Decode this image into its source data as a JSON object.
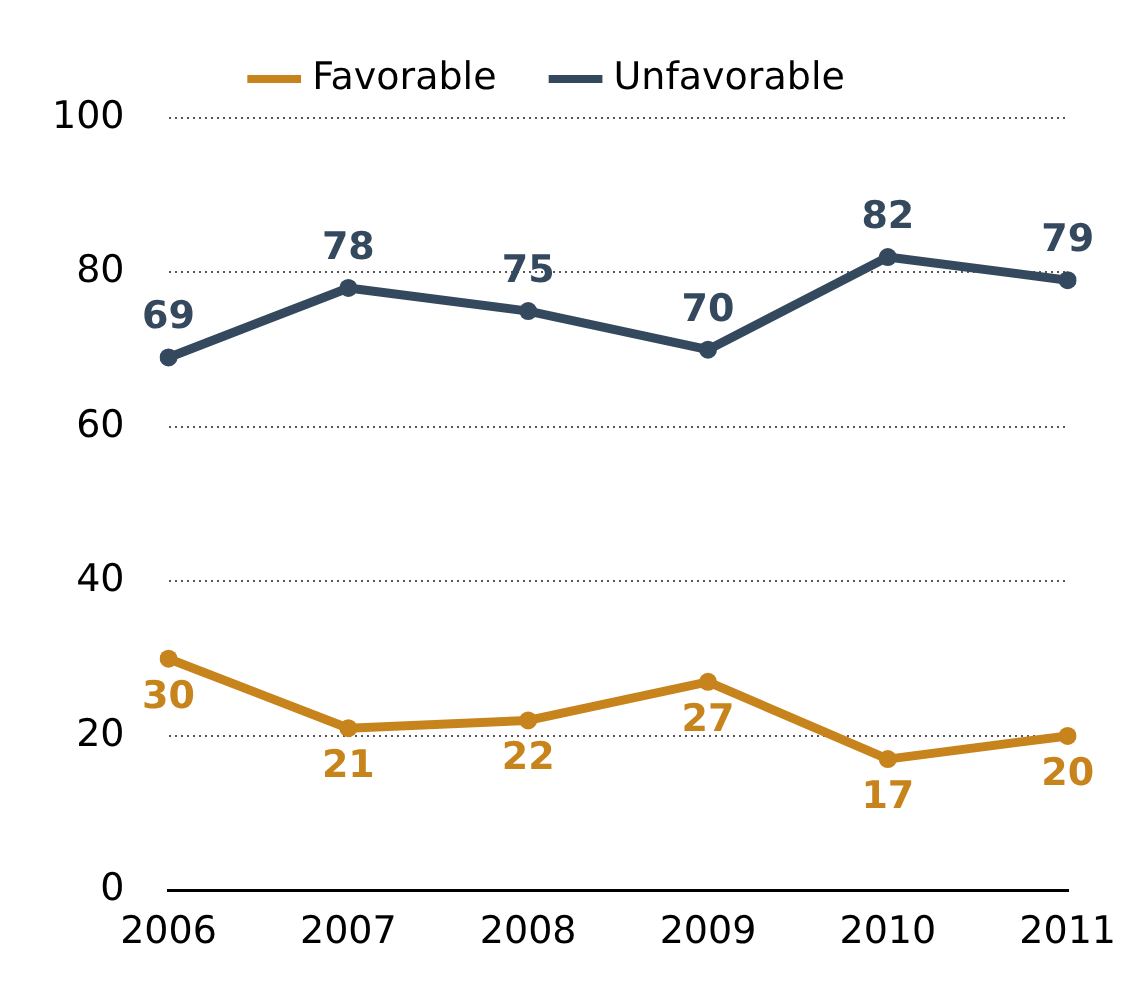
{
  "chart_data": {
    "type": "line",
    "categories": [
      "2006",
      "2007",
      "2008",
      "2009",
      "2010",
      "2011"
    ],
    "series": [
      {
        "name": "Favorable",
        "color": "#c8841c",
        "values": [
          30,
          21,
          22,
          27,
          17,
          20
        ]
      },
      {
        "name": "Unfavorable",
        "color": "#34495e",
        "values": [
          69,
          78,
          75,
          70,
          82,
          79
        ]
      }
    ],
    "ylim": [
      0,
      100
    ],
    "yticks": [
      0,
      20,
      40,
      60,
      80,
      100
    ],
    "grid": "y",
    "legend": "top",
    "marker": "circle",
    "line_style": "solid",
    "data_labels": true
  }
}
